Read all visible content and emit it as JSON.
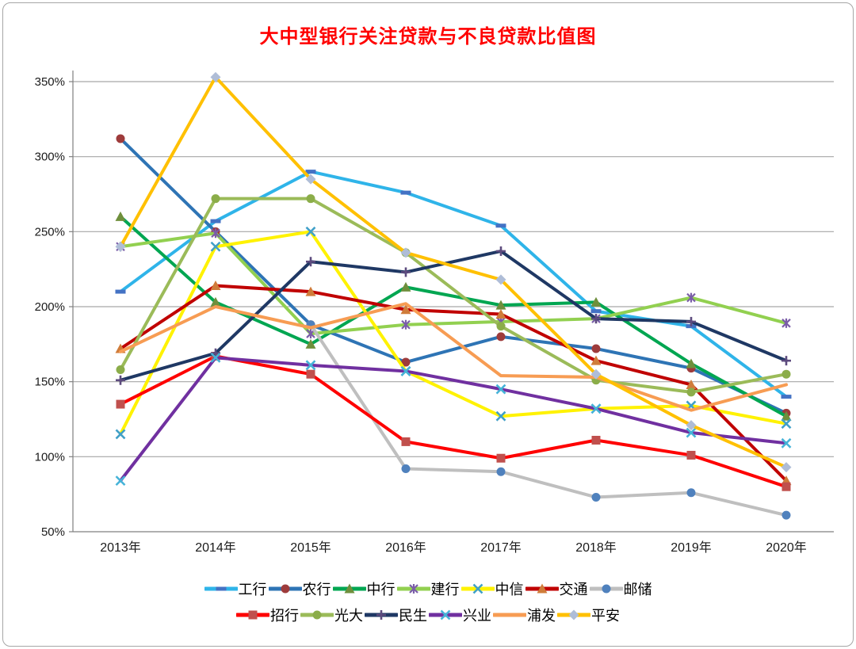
{
  "chart_data": {
    "type": "line",
    "title": "大中型银行关注贷款与不良贷款比值图",
    "title_color": "#FF0000",
    "categories": [
      "2013年",
      "2014年",
      "2015年",
      "2016年",
      "2017年",
      "2018年",
      "2019年",
      "2020年"
    ],
    "y_ticks": [
      {
        "value": 350,
        "label": "350%"
      },
      {
        "value": 300,
        "label": "300%"
      },
      {
        "value": 250,
        "label": "250%"
      },
      {
        "value": 200,
        "label": "200%"
      },
      {
        "value": 150,
        "label": "150%"
      },
      {
        "value": 100,
        "label": "100%"
      },
      {
        "value": 50,
        "label": "50%"
      }
    ],
    "ylim": [
      50,
      350
    ],
    "grid": "horizontal",
    "legend_position": "bottom",
    "series": [
      {
        "id": "icbc",
        "name": "工行",
        "color": "#2FB4E9",
        "marker": "dash",
        "marker_color": "#4472C4",
        "values": [
          210,
          257,
          290,
          276,
          254,
          197,
          187,
          140
        ]
      },
      {
        "id": "abc",
        "name": "农行",
        "color": "#2E74B5",
        "marker": "circle",
        "marker_color": "#9E3B3B",
        "values": [
          312,
          250,
          188,
          163,
          180,
          172,
          159,
          129
        ]
      },
      {
        "id": "boc",
        "name": "中行",
        "color": "#00A651",
        "marker": "triangle",
        "marker_color": "#6F8F3C",
        "values": [
          260,
          203,
          175,
          213,
          201,
          203,
          162,
          127
        ]
      },
      {
        "id": "ccb",
        "name": "建行",
        "color": "#92D050",
        "marker": "asterisk",
        "marker_color": "#7A5DA8",
        "values": [
          240,
          249,
          182,
          188,
          190,
          192,
          206,
          189
        ]
      },
      {
        "id": "citic",
        "name": "中信",
        "color": "#FFF200",
        "marker": "x",
        "marker_color": "#41A0C8",
        "values": [
          115,
          240,
          250,
          157,
          127,
          132,
          134,
          122
        ]
      },
      {
        "id": "bocom",
        "name": "交通",
        "color": "#C00000",
        "marker": "triangle",
        "marker_color": "#D07C3A",
        "values": [
          172,
          214,
          210,
          198,
          195,
          164,
          148,
          84
        ]
      },
      {
        "id": "psbc",
        "name": "邮储",
        "color": "#BFBFBF",
        "marker": "circle",
        "marker_color": "#4F81BD",
        "values": [
          null,
          null,
          188,
          92,
          90,
          73,
          76,
          61
        ]
      },
      {
        "id": "cmb",
        "name": "招行",
        "color": "#FE0000",
        "marker": "square",
        "marker_color": "#C0504D",
        "values": [
          135,
          167,
          155,
          110,
          99,
          111,
          101,
          80
        ]
      },
      {
        "id": "ceb",
        "name": "光大",
        "color": "#9BBB59",
        "marker": "circle",
        "marker_color": "#8BAD49",
        "values": [
          158,
          272,
          272,
          236,
          187,
          151,
          143,
          155
        ]
      },
      {
        "id": "minsheng",
        "name": "民生",
        "color": "#1F3864",
        "marker": "plus",
        "marker_color": "#5D4B7E",
        "values": [
          151,
          169,
          230,
          223,
          237,
          192,
          190,
          164
        ]
      },
      {
        "id": "cib",
        "name": "兴业",
        "color": "#7030A0",
        "marker": "x",
        "marker_color": "#45B3D8",
        "values": [
          84,
          166,
          161,
          157,
          145,
          132,
          116,
          109
        ]
      },
      {
        "id": "spdb",
        "name": "浦发",
        "color": "#F79C53",
        "marker": "none",
        "marker_color": "#F79C53",
        "values": [
          170,
          200,
          186,
          202,
          154,
          153,
          131,
          148
        ]
      },
      {
        "id": "pingan",
        "name": "平安",
        "color": "#FFC000",
        "marker": "diamond",
        "marker_color": "#AFBDD7",
        "values": [
          240,
          353,
          285,
          236,
          218,
          155,
          121,
          93
        ]
      }
    ],
    "legend_rows": [
      7,
      6
    ]
  }
}
